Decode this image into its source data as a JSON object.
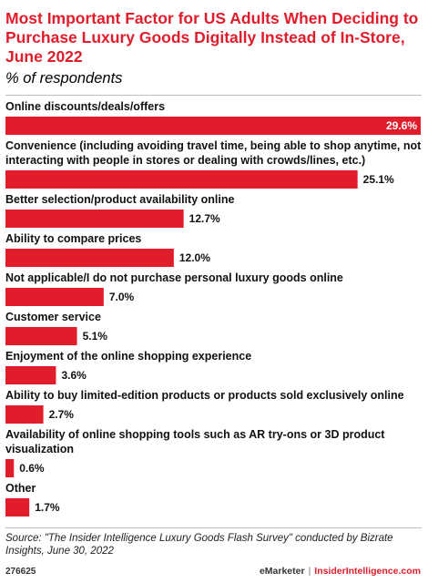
{
  "header": {
    "title": "Most Important Factor for US Adults When Deciding to Purchase Luxury Goods Digitally Instead of In-Store, June 2022",
    "subtitle": "% of respondents"
  },
  "colors": {
    "bar": "#e11d2b",
    "title": "#e11d2b"
  },
  "chart_data": {
    "type": "bar",
    "orientation": "horizontal",
    "title": "Most Important Factor for US Adults When Deciding to Purchase Luxury Goods Digitally Instead of In-Store, June 2022",
    "subtitle": "% of respondents",
    "xlabel": "",
    "ylabel": "",
    "xlim": [
      0,
      29.6
    ],
    "grid": false,
    "legend": "none",
    "categories": [
      [
        "Online discounts/deals/offers"
      ],
      [
        "Convenience (including avoiding travel time, being able to shop anytime, not",
        "interacting with people in stores or dealing with crowds/lines, etc.)"
      ],
      [
        "Better selection/product availability online"
      ],
      [
        "Ability to compare prices"
      ],
      [
        "Not applicable/I do not purchase personal luxury goods online"
      ],
      [
        "Customer service"
      ],
      [
        "Enjoyment of the online shopping experience"
      ],
      [
        "Ability to buy limited-edition products or products sold exclusively online"
      ],
      [
        "Availability of online shopping tools such as AR try-ons or 3D product",
        "visualization"
      ],
      [
        "Other"
      ]
    ],
    "values": [
      29.6,
      25.1,
      12.7,
      12.0,
      7.0,
      5.1,
      3.6,
      2.7,
      0.6,
      1.7
    ],
    "value_labels": [
      "29.6%",
      "25.1%",
      "12.7%",
      "12.0%",
      "7.0%",
      "5.1%",
      "3.6%",
      "2.7%",
      "0.6%",
      "1.7%"
    ]
  },
  "footer": {
    "source": "Source: \"The Insider Intelligence Luxury Goods Flash Survey\" conducted by Bizrate Insights, June 30, 2022",
    "chart_id": "276625",
    "brand_emarketer": "eMarketer",
    "brand_separator": "|",
    "brand_ii": "InsiderIntelligence.com"
  }
}
